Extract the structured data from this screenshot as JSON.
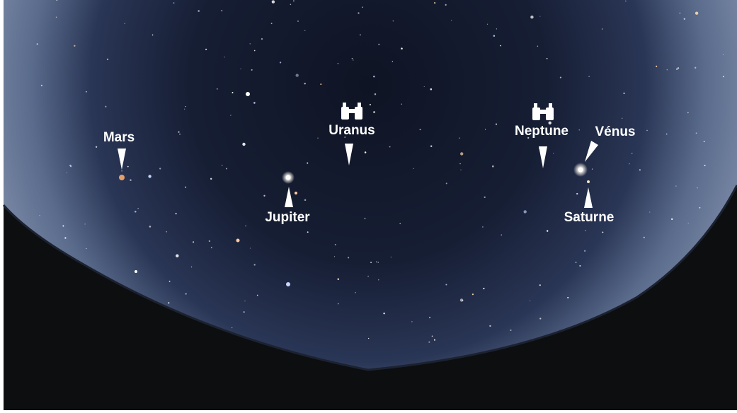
{
  "planets": [
    {
      "label": "Mars"
    },
    {
      "label": "Uranus"
    },
    {
      "label": "Jupiter"
    },
    {
      "label": "Neptune"
    },
    {
      "label": "Vénus"
    },
    {
      "label": "Saturne"
    }
  ]
}
